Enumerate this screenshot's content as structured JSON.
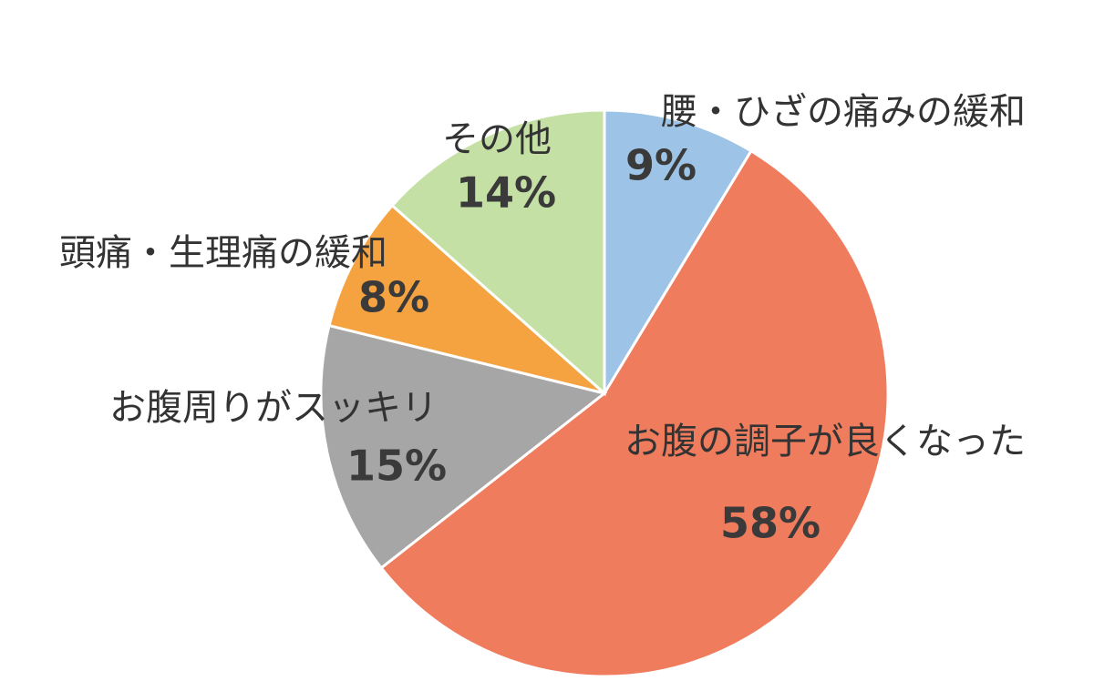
{
  "chart_data": {
    "type": "pie",
    "categories": [
      "腰・ひざの痛みの緩和",
      "お腹の調子が良くなった",
      "お腹周りがスッキリ",
      "頭痛・生理痛の緩和",
      "その他"
    ],
    "values": [
      9,
      58,
      15,
      8,
      14
    ],
    "value_labels": [
      "9%",
      "58%",
      "15%",
      "8%",
      "14%"
    ],
    "colors": [
      "#9dc3e6",
      "#f07c5e",
      "#a6a6a6",
      "#f4a340",
      "#c5e0a5"
    ]
  }
}
